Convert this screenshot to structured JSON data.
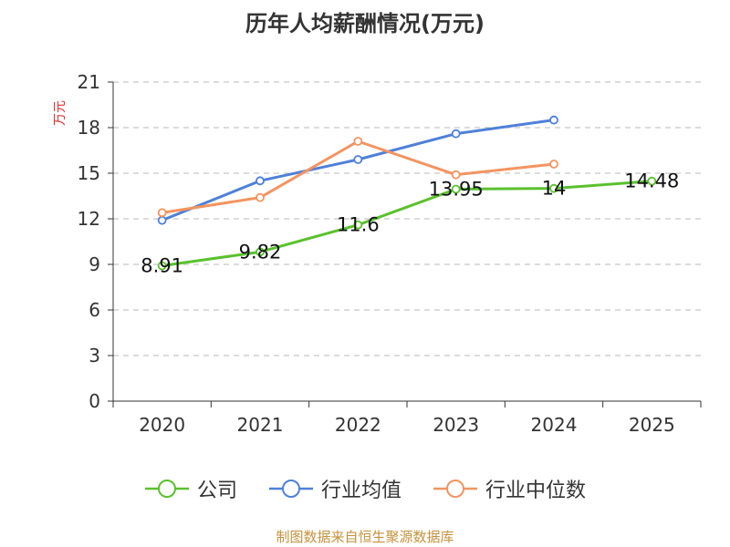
{
  "chart_data": {
    "type": "line",
    "title": "历年人均薪酬情况(万元)",
    "ylabel": "万元",
    "xlabel": "",
    "categories": [
      "2020",
      "2021",
      "2022",
      "2023",
      "2024",
      "2025"
    ],
    "ylim": [
      0,
      21
    ],
    "yticks": [
      0,
      3,
      6,
      9,
      12,
      15,
      18,
      21
    ],
    "grid": true,
    "legend_position": "bottom",
    "series": [
      {
        "name": "公司",
        "color": "#5ac12d",
        "values": [
          8.91,
          9.82,
          11.6,
          13.95,
          14,
          14.48
        ],
        "labels": [
          "8.91",
          "9.82",
          "11.6",
          "13.95",
          "14",
          "14.48"
        ]
      },
      {
        "name": "行业均值",
        "color": "#4f80d9",
        "values": [
          11.9,
          14.5,
          15.9,
          17.6,
          18.5,
          null
        ]
      },
      {
        "name": "行业中位数",
        "color": "#f39460",
        "values": [
          12.4,
          13.4,
          17.1,
          14.9,
          15.6,
          null
        ]
      }
    ]
  },
  "footer": {
    "source": "制图数据来自恒生聚源数据库"
  }
}
